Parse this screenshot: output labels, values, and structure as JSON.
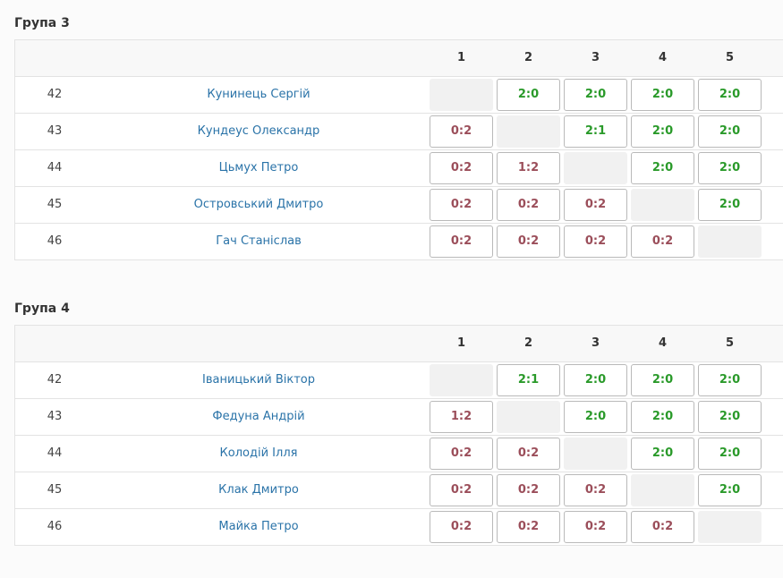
{
  "colors": {
    "win": "#2a9a2a",
    "loss": "#9b4e5a",
    "link": "#2a73a8"
  },
  "groups": [
    {
      "title": "Група 3",
      "columns": [
        "1",
        "2",
        "3",
        "4",
        "5"
      ],
      "rows": [
        {
          "num": "42",
          "name": "Кунинець Сергій",
          "results": [
            "",
            "2:0",
            "2:0",
            "2:0",
            "2:0"
          ]
        },
        {
          "num": "43",
          "name": "Кундеус Олександр",
          "results": [
            "0:2",
            "",
            "2:1",
            "2:0",
            "2:0"
          ]
        },
        {
          "num": "44",
          "name": "Цьмух Петро",
          "results": [
            "0:2",
            "1:2",
            "",
            "2:0",
            "2:0"
          ]
        },
        {
          "num": "45",
          "name": "Островський Дмитро",
          "results": [
            "0:2",
            "0:2",
            "0:2",
            "",
            "2:0"
          ]
        },
        {
          "num": "46",
          "name": "Гач Станіслав",
          "results": [
            "0:2",
            "0:2",
            "0:2",
            "0:2",
            ""
          ]
        }
      ]
    },
    {
      "title": "Група 4",
      "columns": [
        "1",
        "2",
        "3",
        "4",
        "5"
      ],
      "rows": [
        {
          "num": "42",
          "name": "Іваницький Віктор",
          "results": [
            "",
            "2:1",
            "2:0",
            "2:0",
            "2:0"
          ]
        },
        {
          "num": "43",
          "name": "Федуна Андрій",
          "results": [
            "1:2",
            "",
            "2:0",
            "2:0",
            "2:0"
          ]
        },
        {
          "num": "44",
          "name": "Колодій Ілля",
          "results": [
            "0:2",
            "0:2",
            "",
            "2:0",
            "2:0"
          ]
        },
        {
          "num": "45",
          "name": "Клак Дмитро",
          "results": [
            "0:2",
            "0:2",
            "0:2",
            "",
            "2:0"
          ]
        },
        {
          "num": "46",
          "name": "Майка Петро",
          "results": [
            "0:2",
            "0:2",
            "0:2",
            "0:2",
            ""
          ]
        }
      ]
    }
  ]
}
